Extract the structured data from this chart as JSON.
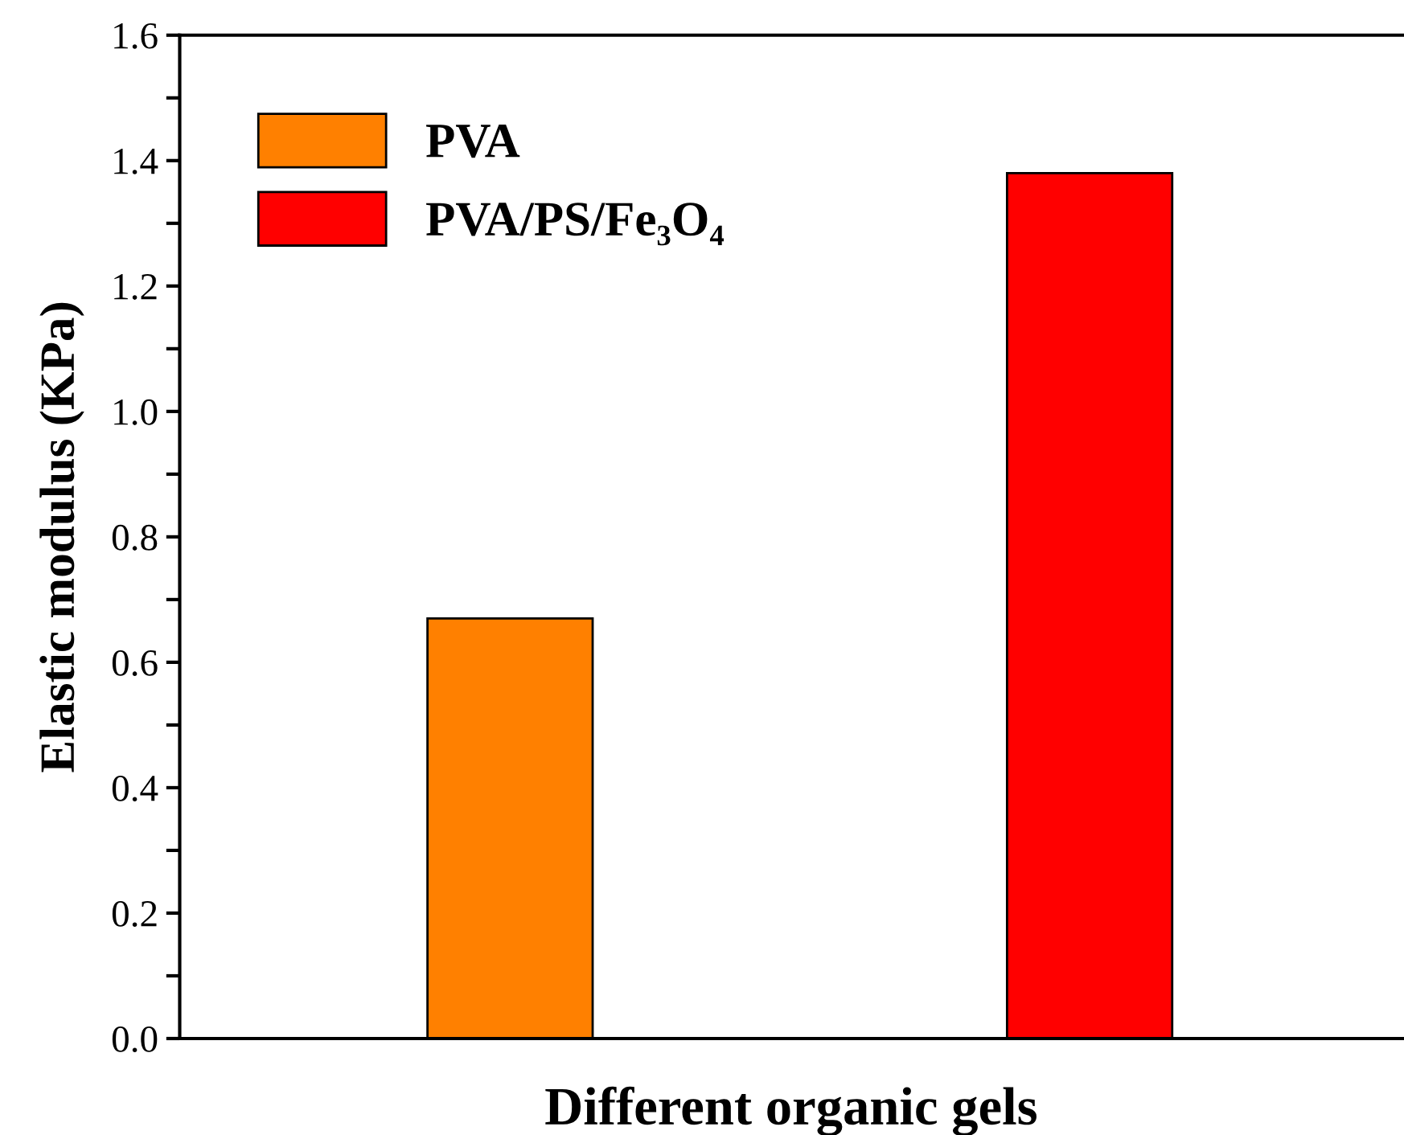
{
  "chart_data": {
    "type": "bar",
    "xlabel": "Different organic gels",
    "ylabel": "Elastic modulus (KPa)",
    "categories": [
      null,
      null
    ],
    "series": [
      {
        "name": "PVA",
        "color": "#ff8000",
        "values": [
          0.67,
          null
        ]
      },
      {
        "name": "PVA/PS/Fe₃O₄",
        "color": "#ff0000",
        "values": [
          null,
          1.38
        ]
      }
    ],
    "ylim": [
      0,
      1.6
    ],
    "yticks": [
      {
        "value": 0,
        "label": "0.0"
      },
      {
        "value": 0.1,
        "label": null
      },
      0.2,
      {
        "value": 0.3,
        "label": null
      },
      0.4,
      {
        "value": 0.5,
        "label": null
      },
      0.6,
      {
        "value": 0.7,
        "label": null
      },
      0.8,
      {
        "value": 0.9,
        "label": null
      },
      {
        "value": 1,
        "label": "1.0"
      },
      {
        "value": 1.1,
        "label": null
      },
      1.2,
      {
        "value": 1.3,
        "label": null
      },
      1.4,
      {
        "value": 1.5,
        "label": null
      },
      1.6
    ],
    "grid": false,
    "legend": "top left"
  }
}
